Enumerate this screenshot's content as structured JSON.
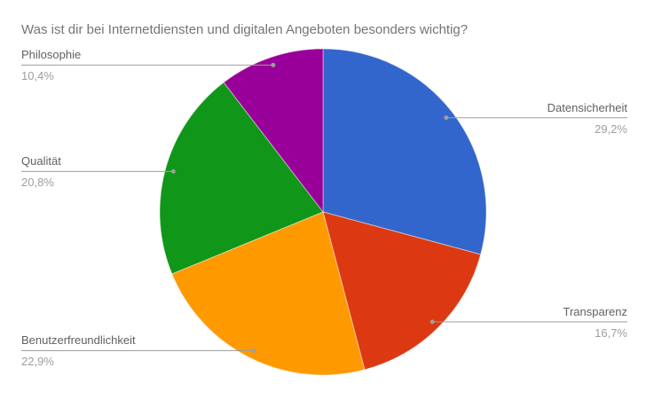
{
  "chart_data": {
    "type": "pie",
    "title": "Was ist dir bei Internetdiensten und digitalen Angeboten besonders wichtig?",
    "labels": [
      "Datensicherheit",
      "Transparenz",
      "Benutzerfreundlichkeit",
      "Qualität",
      "Philosophie"
    ],
    "values": [
      29.2,
      16.7,
      22.9,
      20.8,
      10.4
    ],
    "value_labels": [
      "29,2%",
      "16,7%",
      "22,9%",
      "20,8%",
      "10,4%"
    ],
    "colors": [
      "#3366cc",
      "#dc3912",
      "#ff9900",
      "#109618",
      "#990099"
    ],
    "start_angle_deg": 0,
    "direction": "clockwise",
    "legend": "labeled-callouts",
    "background": "#ffffff",
    "text_colors": {
      "title": "#757575",
      "label": "#616161",
      "percent": "#9e9e9e",
      "leader_line": "#9e9e9e"
    }
  }
}
